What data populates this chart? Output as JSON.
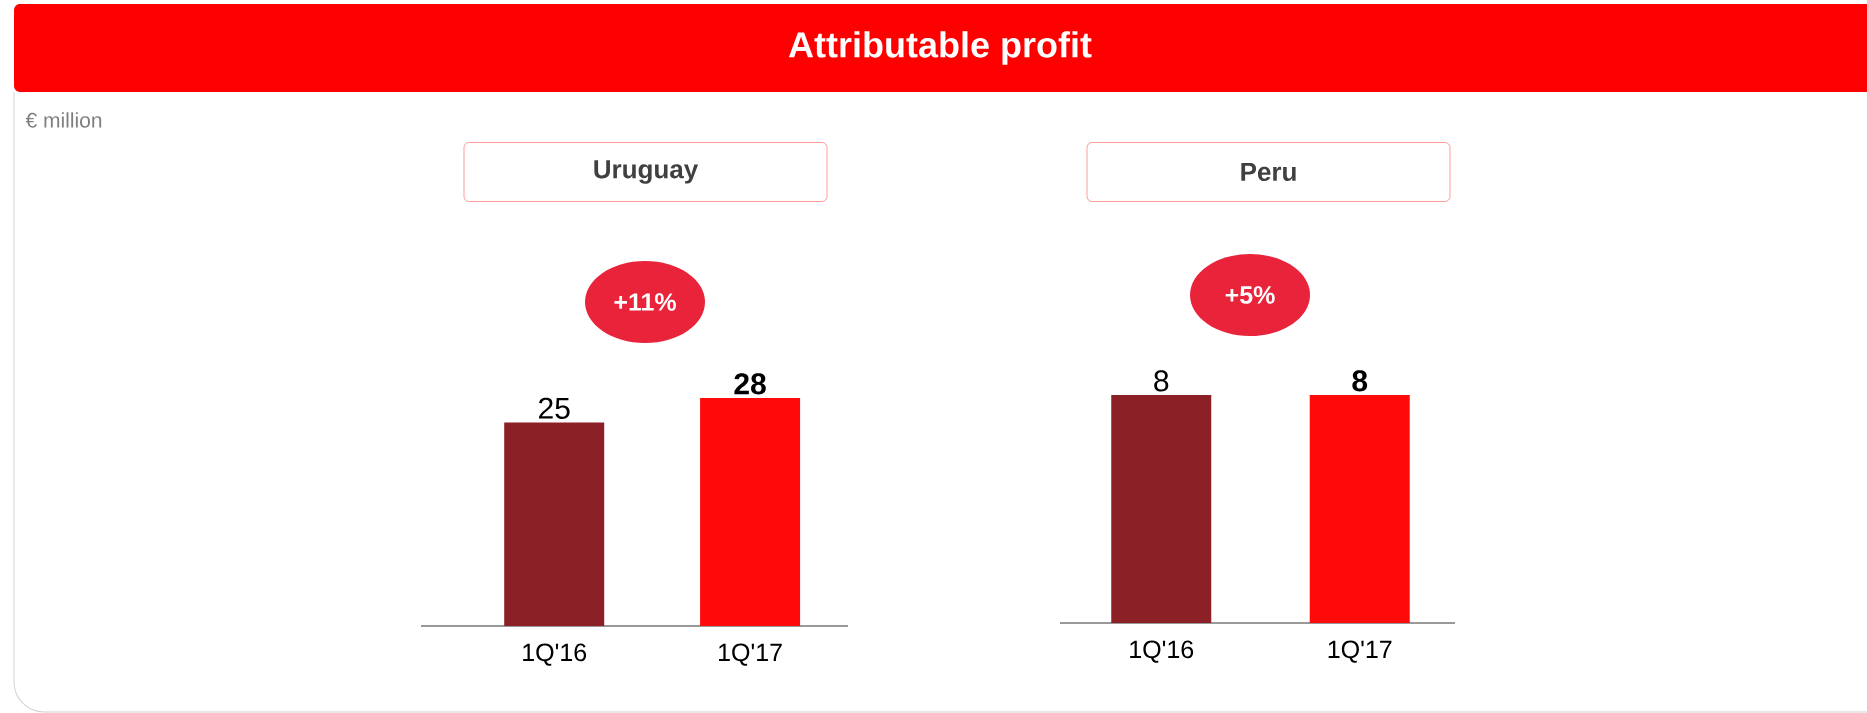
{
  "chart_data": [
    {
      "type": "other",
      "title": "Attributable profit",
      "subtitle": "€ million"
    },
    {
      "type": "bar",
      "title": "Uruguay",
      "categories": [
        "1Q'16",
        "1Q'17"
      ],
      "values": [
        25,
        28
      ],
      "colors": [
        "#8b2027",
        "#ff0a0a"
      ],
      "data_labels": true,
      "annotations": [
        "+11%"
      ]
    },
    {
      "type": "bar",
      "title": "Peru",
      "categories": [
        "1Q'16",
        "1Q'17"
      ],
      "values": [
        8,
        8
      ],
      "colors": [
        "#8b2027",
        "#ff0a0a"
      ],
      "data_labels": true,
      "annotations": [
        "+5%"
      ]
    }
  ]
}
